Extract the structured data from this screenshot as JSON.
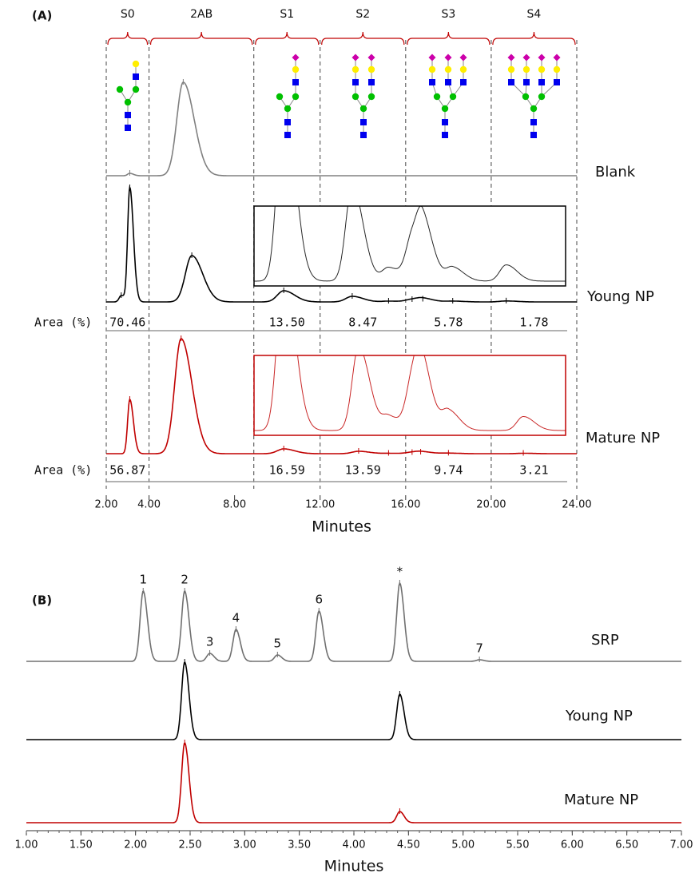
{
  "chart_data": [
    {
      "type": "chromatogram",
      "panel": "(A)",
      "xlabel": "Minutes",
      "xlim": [
        2,
        24
      ],
      "xticks": [
        {
          "value": 2,
          "label": "2.00"
        },
        {
          "value": 4,
          "label": "4.00"
        },
        {
          "value": 8,
          "label": "8.00"
        },
        {
          "value": 12,
          "label": "12.00"
        },
        {
          "value": 16,
          "label": "16.00"
        },
        {
          "value": 20,
          "label": "20.00"
        },
        {
          "value": 24,
          "label": "24.00"
        }
      ],
      "regions": [
        {
          "label": "S0",
          "range": [
            2,
            4
          ]
        },
        {
          "label": "2AB",
          "range": [
            4,
            8.9
          ]
        },
        {
          "label": "S1",
          "range": [
            8.9,
            12
          ]
        },
        {
          "label": "S2",
          "range": [
            12,
            16
          ]
        },
        {
          "label": "S3",
          "range": [
            16,
            20
          ]
        },
        {
          "label": "S4",
          "range": [
            20,
            24
          ]
        }
      ],
      "area_label": "Area (%)",
      "series": [
        {
          "name": "Blank",
          "color": "#808080",
          "x": [
            3.1,
            5.6
          ],
          "values": [
            3,
            117
          ]
        },
        {
          "name": "Young NP",
          "color": "#000000",
          "x": [
            2.7,
            3.1,
            6.0,
            10.3,
            13.5,
            15.2,
            16.3,
            16.8,
            18.2,
            20.7
          ],
          "values": [
            8,
            143,
            58,
            14,
            7,
            1,
            3,
            3.5,
            1,
            1.2
          ],
          "areas": [
            "70.46",
            "13.50",
            "8.47",
            "5.78",
            "1.78"
          ]
        },
        {
          "name": "Mature NP",
          "color": "#c00000",
          "x": [
            3.1,
            5.5,
            10.3,
            13.8,
            15.2,
            16.3,
            16.7,
            18,
            21.5
          ],
          "values": [
            68,
            144,
            6,
            3,
            0.5,
            1.5,
            2,
            0.7,
            0.5
          ],
          "areas": [
            "56.87",
            "16.59",
            "13.59",
            "9.74",
            "3.21"
          ]
        }
      ]
    },
    {
      "type": "chromatogram",
      "panel": "(B)",
      "xlabel": "Minutes",
      "xlim": [
        1,
        7
      ],
      "xticks": [
        {
          "value": 1,
          "label": "1.00"
        },
        {
          "value": 1.5,
          "label": "1.50"
        },
        {
          "value": 2,
          "label": "2.00"
        },
        {
          "value": 2.5,
          "label": "2.50"
        },
        {
          "value": 3,
          "label": "3.00"
        },
        {
          "value": 3.5,
          "label": "3.50"
        },
        {
          "value": 4,
          "label": "4.00"
        },
        {
          "value": 4.5,
          "label": "4.50"
        },
        {
          "value": 5,
          "label": "5.00"
        },
        {
          "value": 5.5,
          "label": "5.50"
        },
        {
          "value": 6,
          "label": "6.00"
        },
        {
          "value": 6.5,
          "label": "6.50"
        },
        {
          "value": 7,
          "label": "7.00"
        }
      ],
      "series": [
        {
          "name": "SRP",
          "color": "#707070",
          "x": [
            2.07,
            2.45,
            2.68,
            2.92,
            3.3,
            3.68,
            4.42,
            5.15
          ],
          "values": [
            88,
            88,
            10,
            40,
            8,
            63,
            98,
            2
          ],
          "peak_labels": [
            "1",
            "2",
            "3",
            "4",
            "5",
            "6",
            "*",
            "7"
          ]
        },
        {
          "name": "Young NP",
          "color": "#000000",
          "x": [
            2.45,
            4.42
          ],
          "values": [
            97,
            57
          ]
        },
        {
          "name": "Mature NP",
          "color": "#c00000",
          "x": [
            2.45,
            4.42
          ],
          "values": [
            100,
            14
          ]
        }
      ]
    }
  ]
}
